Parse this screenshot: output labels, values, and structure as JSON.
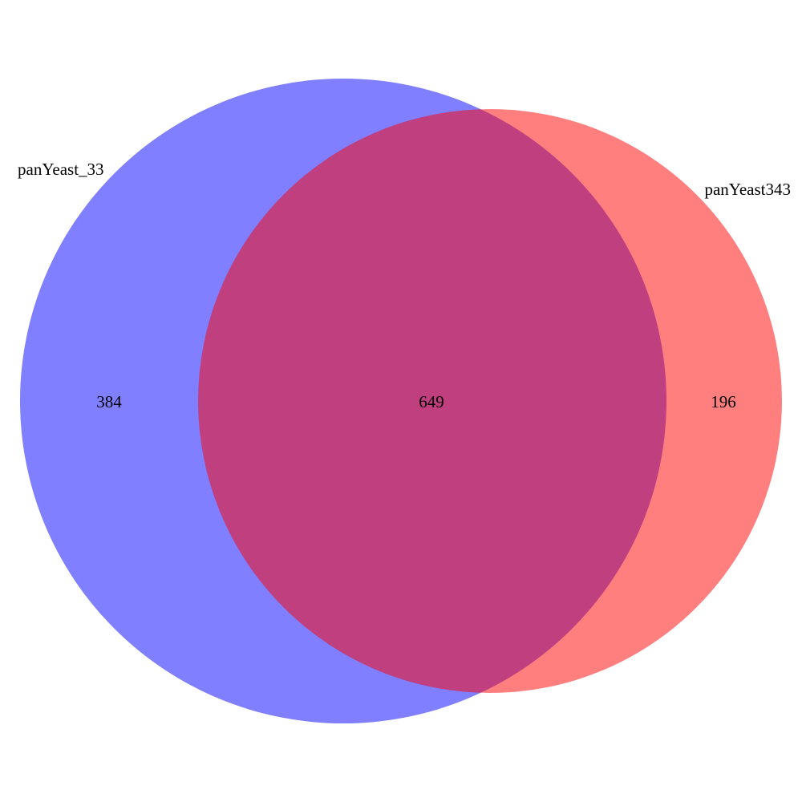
{
  "diagram": {
    "type": "venn",
    "sets": [
      {
        "name": "panYeast_33",
        "color": "#0000ff",
        "opacity": 0.5
      },
      {
        "name": "panYeast343",
        "color": "#ff0000",
        "opacity": 0.5
      }
    ],
    "regions": {
      "only_a": "384",
      "intersection": "649",
      "only_b": "196"
    }
  }
}
